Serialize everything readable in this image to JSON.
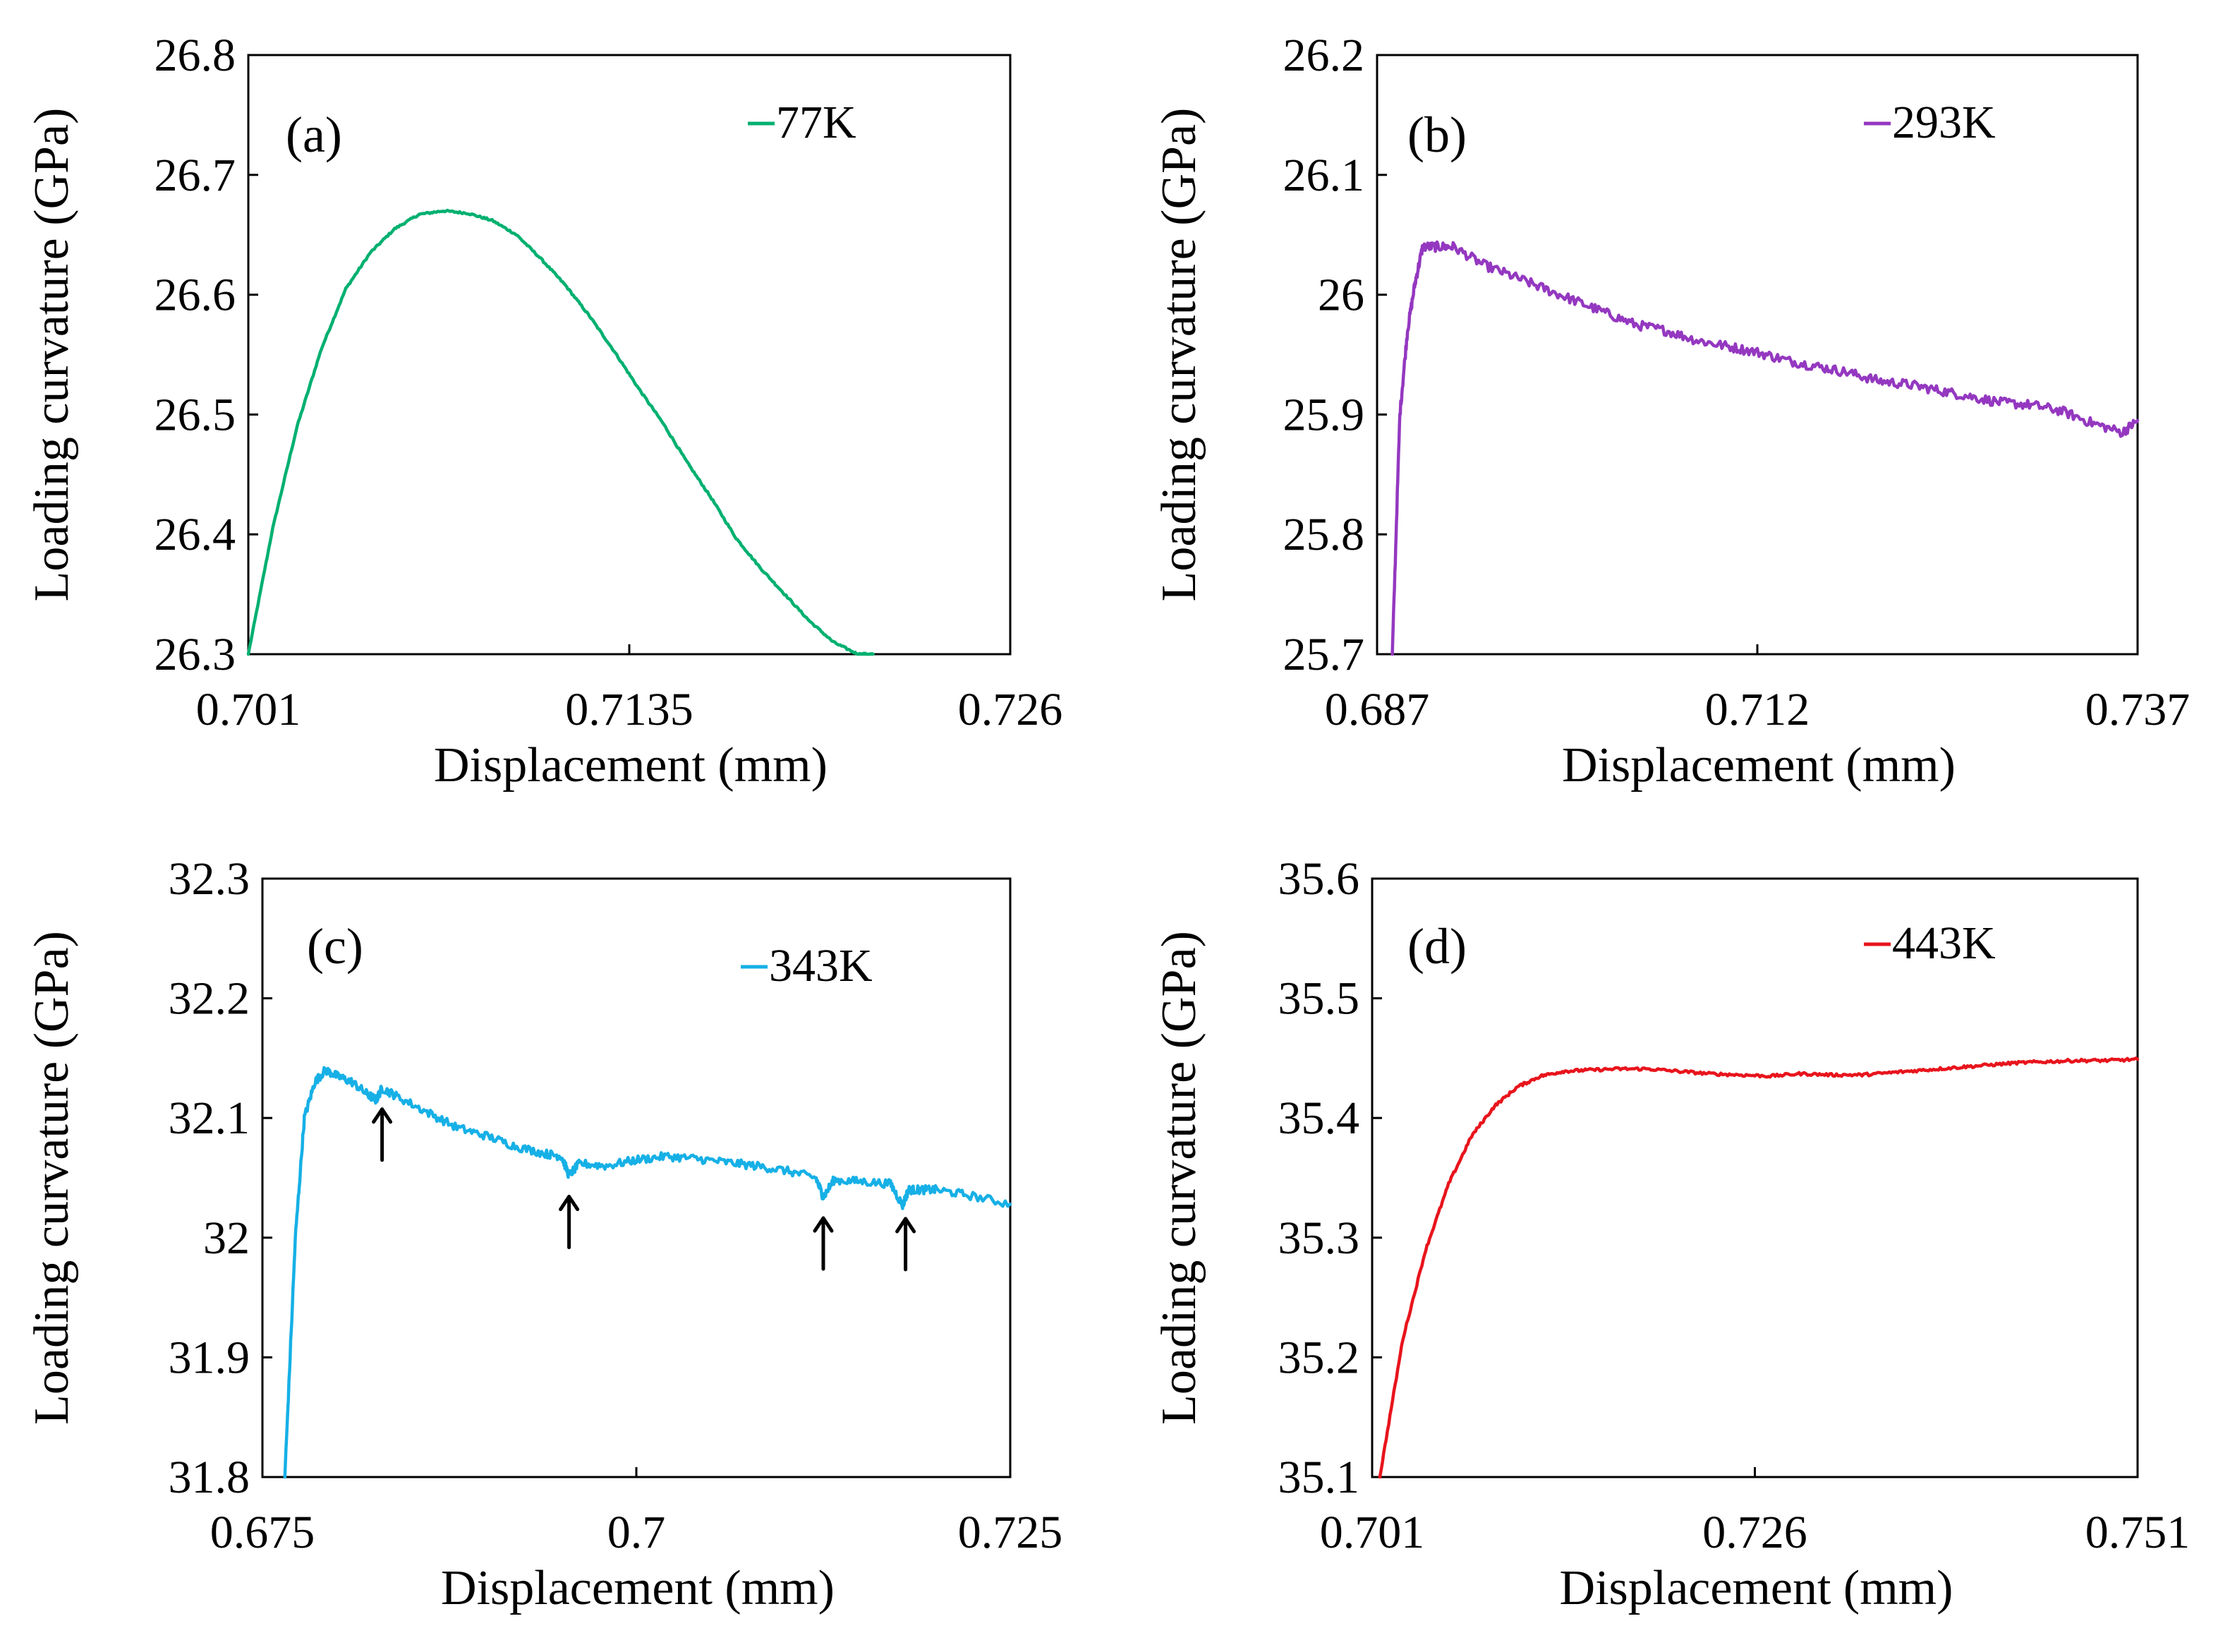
{
  "chart_data": [
    {
      "type": "line",
      "panel": "(a)",
      "xlabel": "Displacement (mm)",
      "ylabel": "Loading curvature (GPa)",
      "xlim": [
        0.701,
        0.726
      ],
      "ylim": [
        26.3,
        26.8
      ],
      "xticks": [
        "0.701",
        "0.7135",
        "0.726"
      ],
      "yticks": [
        "26.3",
        "26.4",
        "26.5",
        "26.6",
        "26.7",
        "26.8"
      ],
      "grid": false,
      "legend_position": "top-right",
      "series": [
        {
          "name": "77K",
          "color": "#00b070",
          "noise": 0.0008,
          "x": [
            0.701,
            0.7018,
            0.7026,
            0.7034,
            0.7042,
            0.705,
            0.7058,
            0.7066,
            0.7074,
            0.7082,
            0.709,
            0.7098,
            0.7106,
            0.7114,
            0.7122,
            0.713,
            0.7138,
            0.7146,
            0.7154,
            0.7162,
            0.717,
            0.7178,
            0.7186,
            0.7194,
            0.7202,
            0.721,
            0.7215
          ],
          "y": [
            26.3,
            26.405,
            26.49,
            26.555,
            26.605,
            26.635,
            26.655,
            26.667,
            26.67,
            26.668,
            26.662,
            26.65,
            26.63,
            26.608,
            26.582,
            26.553,
            26.522,
            26.493,
            26.46,
            26.43,
            26.397,
            26.372,
            26.35,
            26.328,
            26.31,
            26.3,
            26.3
          ]
        }
      ]
    },
    {
      "type": "line",
      "panel": "(b)",
      "xlabel": "Displacement (mm)",
      "ylabel": "Loading curvature (GPa)",
      "xlim": [
        0.687,
        0.737
      ],
      "ylim": [
        25.7,
        26.2
      ],
      "xticks": [
        "0.687",
        "0.712",
        "0.737"
      ],
      "yticks": [
        "25.7",
        "25.8",
        "25.9",
        "26",
        "26.1",
        "26.2"
      ],
      "grid": false,
      "legend_position": "top-right",
      "series": [
        {
          "name": "293K",
          "color": "#9438c0",
          "noise": 0.004,
          "x": [
            0.688,
            0.6885,
            0.689,
            0.6895,
            0.69,
            0.691,
            0.692,
            0.694,
            0.696,
            0.698,
            0.7,
            0.702,
            0.704,
            0.706,
            0.708,
            0.71,
            0.712,
            0.714,
            0.716,
            0.718,
            0.72,
            0.722,
            0.724,
            0.726,
            0.728,
            0.73,
            0.732,
            0.734,
            0.736,
            0.737
          ],
          "y": [
            25.7,
            25.9,
            25.97,
            26.01,
            26.04,
            26.04,
            26.04,
            26.025,
            26.015,
            26.005,
            25.995,
            25.985,
            25.975,
            25.97,
            25.962,
            25.957,
            25.952,
            25.945,
            25.94,
            25.935,
            25.928,
            25.925,
            25.92,
            25.915,
            25.91,
            25.908,
            25.903,
            25.893,
            25.885,
            25.895
          ]
        }
      ]
    },
    {
      "type": "line",
      "panel": "(c)",
      "xlabel": "Displacement (mm)",
      "ylabel": "Loading curvature (GPa)",
      "xlim": [
        0.675,
        0.725
      ],
      "ylim": [
        31.8,
        32.3
      ],
      "xticks": [
        "0.675",
        "0.7",
        "0.725"
      ],
      "yticks": [
        "31.8",
        "31.9",
        "32",
        "32.1",
        "32.2",
        "32.3"
      ],
      "grid": false,
      "legend_position": "top-right",
      "arrows_at_x": [
        0.683,
        0.6955,
        0.7125,
        0.718
      ],
      "series": [
        {
          "name": "343K",
          "color": "#16b0e6",
          "noise": 0.0035,
          "x": [
            0.6765,
            0.6772,
            0.6778,
            0.6785,
            0.6792,
            0.68,
            0.681,
            0.682,
            0.6826,
            0.683,
            0.684,
            0.686,
            0.688,
            0.69,
            0.692,
            0.694,
            0.695,
            0.6955,
            0.6962,
            0.698,
            0.7,
            0.702,
            0.704,
            0.706,
            0.708,
            0.71,
            0.712,
            0.7125,
            0.7132,
            0.715,
            0.717,
            0.7178,
            0.7182,
            0.719,
            0.72,
            0.722,
            0.725
          ],
          "y": [
            31.8,
            32.0,
            32.1,
            32.13,
            32.14,
            32.135,
            32.13,
            32.12,
            32.115,
            32.125,
            32.118,
            32.105,
            32.092,
            32.085,
            32.076,
            32.07,
            32.068,
            32.052,
            32.062,
            32.06,
            32.065,
            32.068,
            32.066,
            32.063,
            32.06,
            32.056,
            32.05,
            32.034,
            32.048,
            32.047,
            32.045,
            32.027,
            32.04,
            32.04,
            32.04,
            32.036,
            32.028
          ]
        }
      ]
    },
    {
      "type": "line",
      "panel": "(d)",
      "xlabel": "Displacement (mm)",
      "ylabel": "Loading curvature (GPa)",
      "xlim": [
        0.701,
        0.751
      ],
      "ylim": [
        35.1,
        35.6
      ],
      "xticks": [
        "0.701",
        "0.726",
        "0.751"
      ],
      "yticks": [
        "35.1",
        "35.2",
        "35.3",
        "35.4",
        "35.5",
        "35.6"
      ],
      "grid": false,
      "legend_position": "top-right",
      "series": [
        {
          "name": "443K",
          "color": "#e8141c",
          "noise": 0.0012,
          "x": [
            0.7015,
            0.703,
            0.7045,
            0.706,
            0.7075,
            0.709,
            0.7105,
            0.712,
            0.7135,
            0.715,
            0.717,
            0.719,
            0.721,
            0.723,
            0.725,
            0.727,
            0.729,
            0.731,
            0.733,
            0.735,
            0.737,
            0.739,
            0.741,
            0.743,
            0.745,
            0.747,
            0.749,
            0.751
          ],
          "y": [
            35.1,
            35.215,
            35.29,
            35.345,
            35.385,
            35.41,
            35.426,
            35.435,
            35.439,
            35.44,
            35.441,
            35.441,
            35.439,
            35.437,
            35.436,
            35.435,
            35.437,
            35.436,
            35.436,
            35.438,
            35.44,
            35.442,
            35.444,
            35.446,
            35.447,
            35.448,
            35.448,
            35.449
          ]
        }
      ]
    }
  ]
}
